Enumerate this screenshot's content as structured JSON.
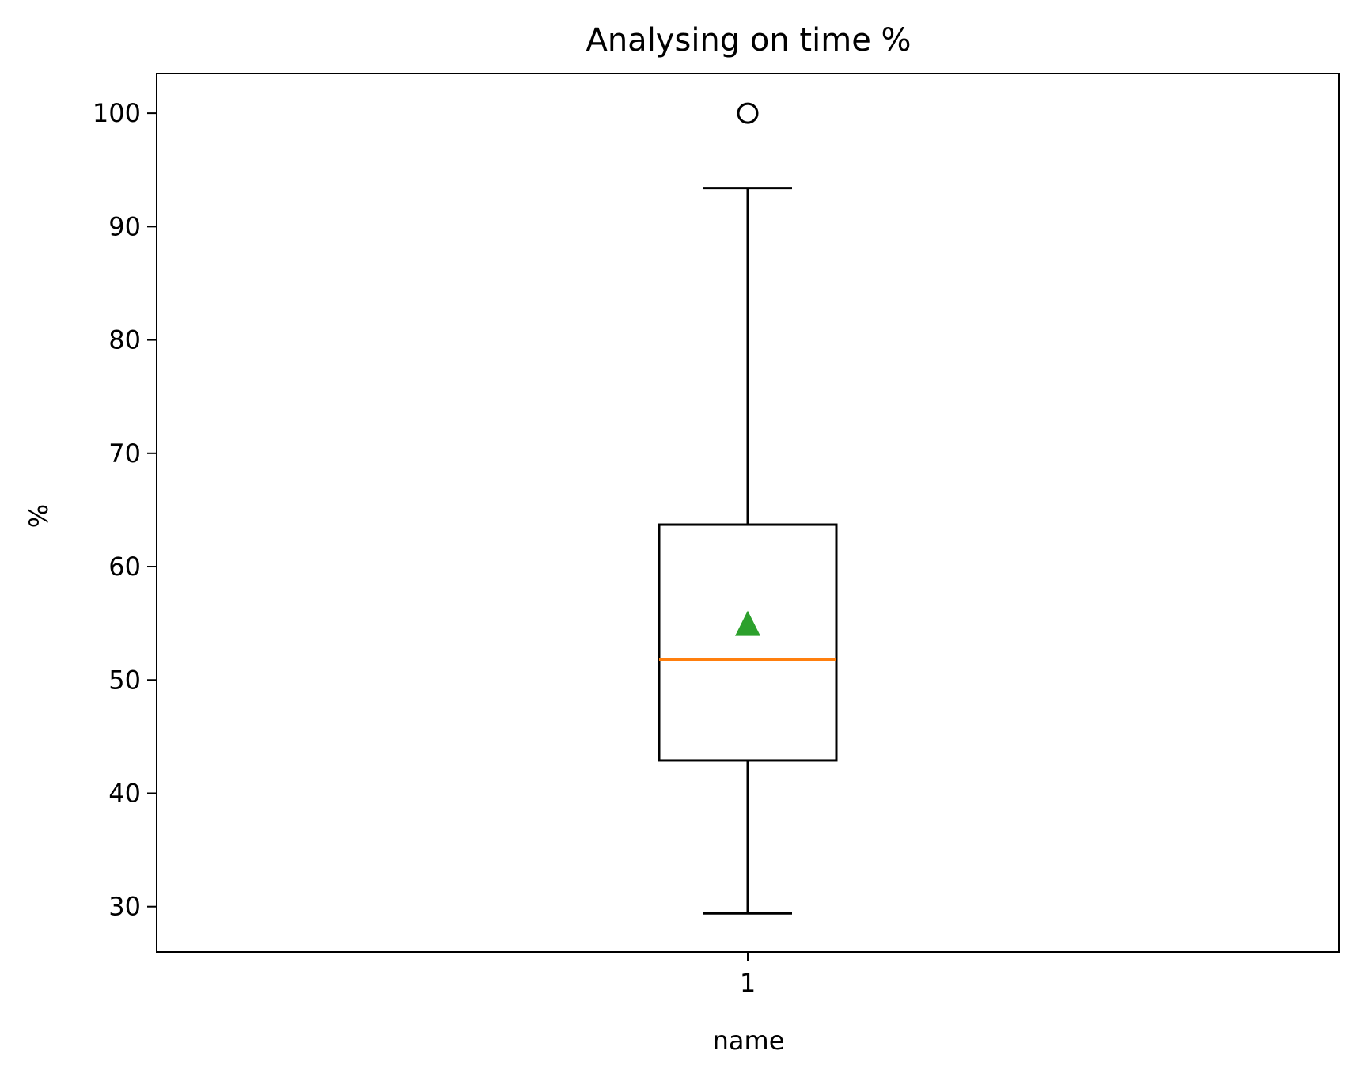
{
  "chart_data": {
    "type": "box",
    "title": "Analysing on time %",
    "xlabel": "name",
    "ylabel": "%",
    "categories": [
      "1"
    ],
    "ylim": [
      26,
      103.5
    ],
    "yticks": [
      30,
      40,
      50,
      60,
      70,
      80,
      90,
      100
    ],
    "grid": false,
    "boxes": [
      {
        "category": "1",
        "whisker_low": 29.4,
        "q1": 42.9,
        "median": 51.8,
        "q3": 63.7,
        "whisker_high": 93.4,
        "mean": 55.0,
        "outliers": [
          100
        ]
      }
    ],
    "colors": {
      "box": "#000000",
      "median": "#ff7f0e",
      "mean": "#2ca02c",
      "outlier": "#000000"
    }
  }
}
